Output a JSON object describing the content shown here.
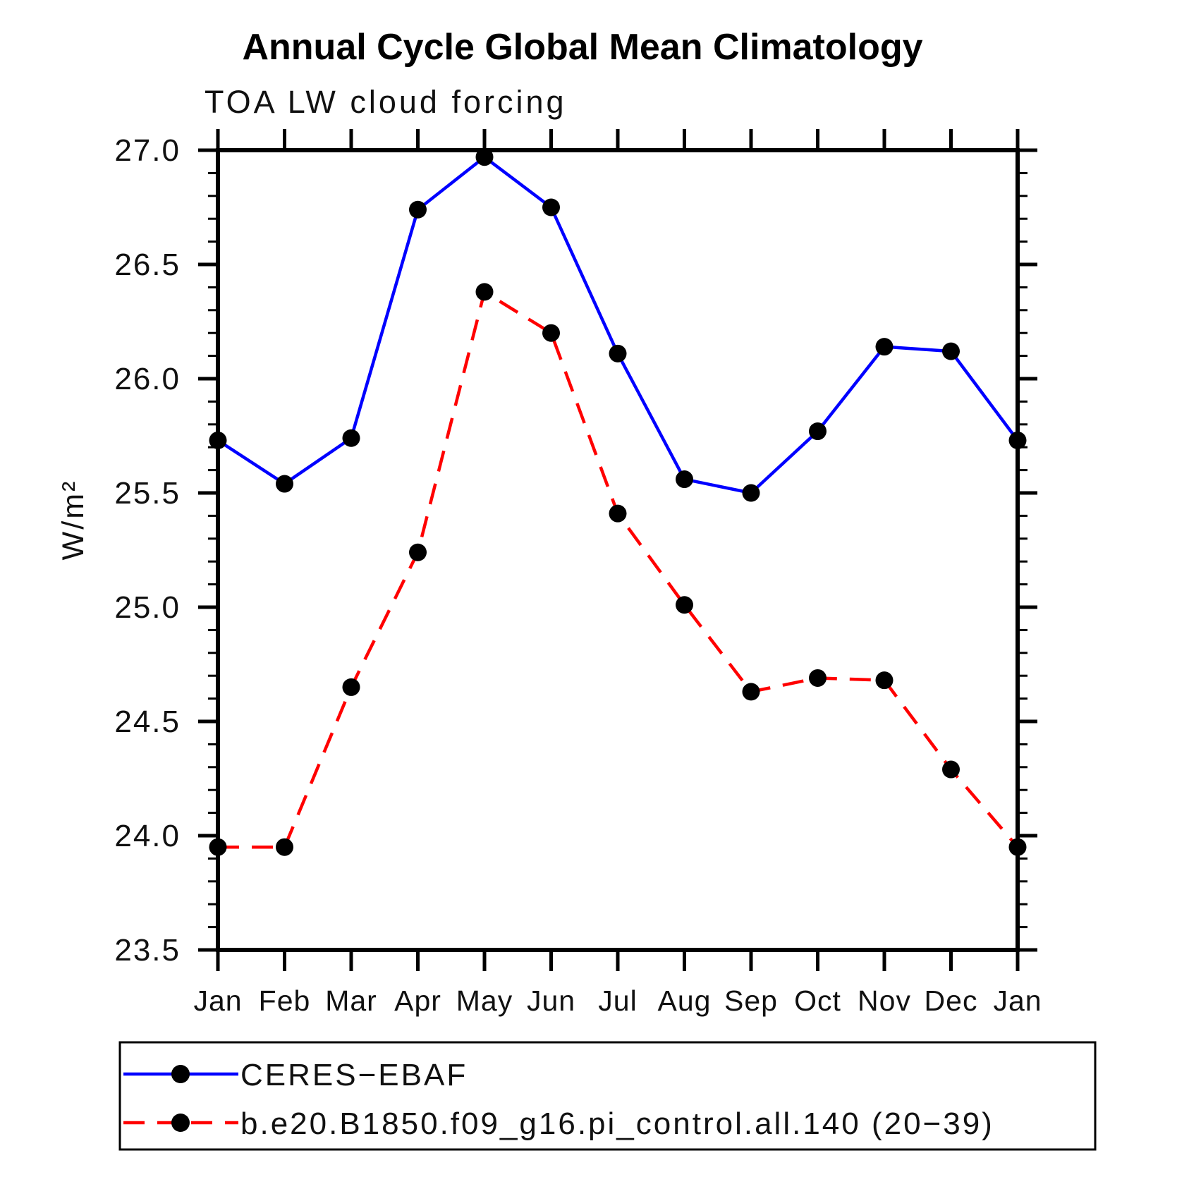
{
  "chart_data": {
    "type": "line",
    "title": "Annual Cycle Global Mean Climatology",
    "subtitle": "TOA LW cloud forcing",
    "ylabel": "W/m²",
    "xlabel": "",
    "x_categories": [
      "Jan",
      "Feb",
      "Mar",
      "Apr",
      "May",
      "Jun",
      "Jul",
      "Aug",
      "Sep",
      "Oct",
      "Nov",
      "Dec",
      "Jan"
    ],
    "ylim": [
      23.5,
      27.0
    ],
    "y_major_step": 0.5,
    "y_minor_step": 0.1,
    "grid": false,
    "legend_position": "bottom",
    "axis_color": "#000000",
    "marker_color": "#000000",
    "series": [
      {
        "name": "CERES−EBAF",
        "color": "#0000ff",
        "style": "solid",
        "marker": "circle",
        "values": [
          25.73,
          25.54,
          25.74,
          26.74,
          26.97,
          26.75,
          26.11,
          25.56,
          25.5,
          25.77,
          26.14,
          26.12,
          25.73
        ]
      },
      {
        "name": "b.e20.B1850.f09_g16.pi_control.all.140 (20−39)",
        "color": "#ff0000",
        "style": "dashed",
        "marker": "circle",
        "values": [
          23.95,
          23.95,
          24.65,
          25.24,
          26.38,
          26.2,
          25.41,
          25.01,
          24.63,
          24.69,
          24.68,
          24.29,
          23.95
        ]
      }
    ]
  }
}
